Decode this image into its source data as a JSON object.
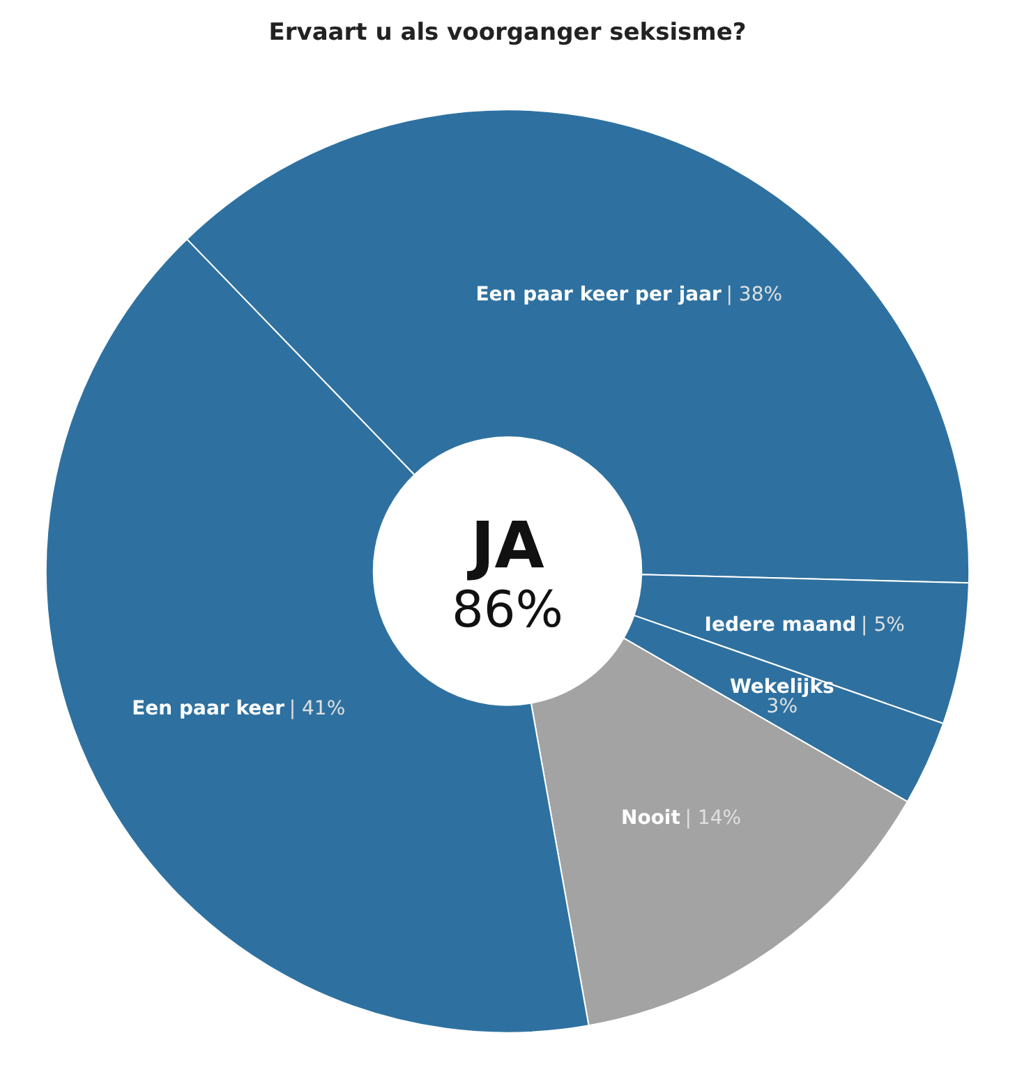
{
  "chart_data": {
    "type": "donut",
    "title": "Ervaart u als voorganger seksisme?",
    "categories": [
      "Een paar keer per jaar",
      "Iedere maand",
      "Wekelijks",
      "Nooit",
      "Een paar keer"
    ],
    "values": [
      38,
      5,
      3,
      14,
      41
    ],
    "value_labels": [
      "| 38%",
      "| 5%",
      "3%",
      "| 14%",
      "| 41%"
    ],
    "colors": [
      "#2e71a0",
      "#2e71a0",
      "#2e71a0",
      "#a3a3a3",
      "#2e71a0"
    ],
    "annotations": [
      "JA",
      "86%"
    ],
    "legend": false
  }
}
